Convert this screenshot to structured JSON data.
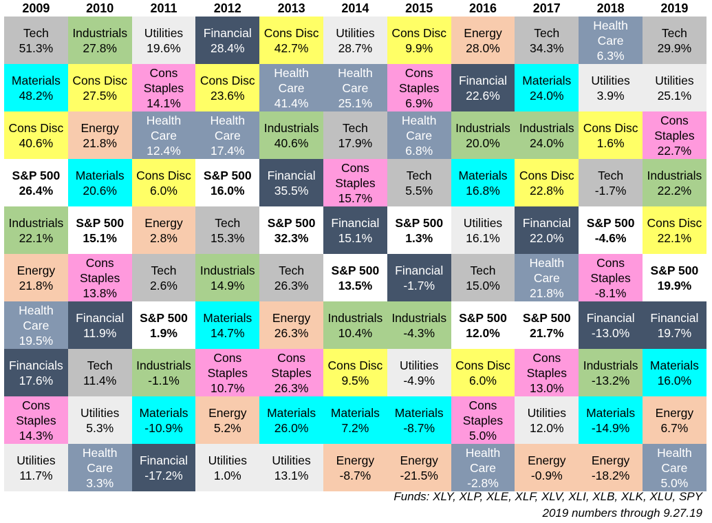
{
  "chart_data": {
    "type": "table",
    "years": [
      "2009",
      "2010",
      "2011",
      "2012",
      "2013",
      "2014",
      "2015",
      "2016",
      "2017",
      "2018",
      "2019"
    ],
    "columns": [
      [
        [
          "Tech",
          51.3
        ],
        [
          "Materials",
          48.2
        ],
        [
          "Cons Disc",
          40.6
        ],
        [
          "S&P 500",
          26.4
        ],
        [
          "Industrials",
          22.1
        ],
        [
          "Energy",
          21.8
        ],
        [
          "Health Care",
          19.5
        ],
        [
          "Financials",
          17.6
        ],
        [
          "Cons Staples",
          14.3
        ],
        [
          "Utilities",
          11.7
        ]
      ],
      [
        [
          "Industrials",
          27.8
        ],
        [
          "Cons Disc",
          27.5
        ],
        [
          "Energy",
          21.8
        ],
        [
          "Materials",
          20.6
        ],
        [
          "S&P 500",
          15.1
        ],
        [
          "Cons Staples",
          13.8
        ],
        [
          "Financial",
          11.9
        ],
        [
          "Tech",
          11.4
        ],
        [
          "Utilities",
          5.3
        ],
        [
          "Health Care",
          3.3
        ]
      ],
      [
        [
          "Utilities",
          19.6
        ],
        [
          "Cons Staples",
          14.1
        ],
        [
          "Health Care",
          12.4
        ],
        [
          "Cons Disc",
          6.0
        ],
        [
          "Energy",
          2.8
        ],
        [
          "Tech",
          2.6
        ],
        [
          "S&P 500",
          1.9
        ],
        [
          "Industrials",
          -1.1
        ],
        [
          "Materials",
          -10.9
        ],
        [
          "Financial",
          -17.2
        ]
      ],
      [
        [
          "Financial",
          28.4
        ],
        [
          "Cons Disc",
          23.6
        ],
        [
          "Health Care",
          17.4
        ],
        [
          "S&P 500",
          16.0
        ],
        [
          "Tech",
          15.3
        ],
        [
          "Industrials",
          14.9
        ],
        [
          "Materials",
          14.7
        ],
        [
          "Cons Staples",
          10.7
        ],
        [
          "Energy",
          5.2
        ],
        [
          "Utilities",
          1.0
        ]
      ],
      [
        [
          "Cons Disc",
          42.7
        ],
        [
          "Health Care",
          41.4
        ],
        [
          "Industrials",
          40.6
        ],
        [
          "Financial",
          35.5
        ],
        [
          "S&P 500",
          32.3
        ],
        [
          "Tech",
          26.3
        ],
        [
          "Energy",
          26.3
        ],
        [
          "Cons Staples",
          26.3
        ],
        [
          "Materials",
          26.0
        ],
        [
          "Utilities",
          13.1
        ]
      ],
      [
        [
          "Utilities",
          28.7
        ],
        [
          "Health Care",
          25.1
        ],
        [
          "Tech",
          17.9
        ],
        [
          "Cons Staples",
          15.7
        ],
        [
          "Financial",
          15.1
        ],
        [
          "S&P 500",
          13.5
        ],
        [
          "Industrials",
          10.4
        ],
        [
          "Cons Disc",
          9.5
        ],
        [
          "Materials",
          7.2
        ],
        [
          "Energy",
          -8.7
        ]
      ],
      [
        [
          "Cons Disc",
          9.9
        ],
        [
          "Cons Staples",
          6.9
        ],
        [
          "Health Care",
          6.8
        ],
        [
          "Tech",
          5.5
        ],
        [
          "S&P 500",
          1.3
        ],
        [
          "Financial",
          -1.7
        ],
        [
          "Industrials",
          -4.3
        ],
        [
          "Utilities",
          -4.9
        ],
        [
          "Materials",
          -8.7
        ],
        [
          "Energy",
          -21.5
        ]
      ],
      [
        [
          "Energy",
          28.0
        ],
        [
          "Financial",
          22.6
        ],
        [
          "Industrials",
          20.0
        ],
        [
          "Materials",
          16.8
        ],
        [
          "Utilities",
          16.1
        ],
        [
          "Tech",
          15.0
        ],
        [
          "S&P 500",
          12.0
        ],
        [
          "Cons Disc",
          6.0
        ],
        [
          "Cons Staples",
          5.0
        ],
        [
          "Health Care",
          -2.8
        ]
      ],
      [
        [
          "Tech",
          34.3
        ],
        [
          "Materials",
          24.0
        ],
        [
          "Industrials",
          24.0
        ],
        [
          "Cons Disc",
          22.8
        ],
        [
          "Financial",
          22.0
        ],
        [
          "Health Care",
          21.8
        ],
        [
          "S&P 500",
          21.7
        ],
        [
          "Cons Staples",
          13.0
        ],
        [
          "Utilities",
          12.0
        ],
        [
          "Energy",
          -0.9
        ]
      ],
      [
        [
          "Health Care",
          6.3
        ],
        [
          "Utilities",
          3.9
        ],
        [
          "Cons Disc",
          1.6
        ],
        [
          "Tech",
          -1.7
        ],
        [
          "S&P 500",
          -4.6
        ],
        [
          "Cons Staples",
          -8.1
        ],
        [
          "Financial",
          -13.0
        ],
        [
          "Industrials",
          -13.2
        ],
        [
          "Materials",
          -14.9
        ],
        [
          "Energy",
          -18.2
        ]
      ],
      [
        [
          "Tech",
          29.9
        ],
        [
          "Utilities",
          25.1
        ],
        [
          "Cons Staples",
          22.7
        ],
        [
          "Industrials",
          22.2
        ],
        [
          "Cons Disc",
          22.1
        ],
        [
          "S&P 500",
          19.9
        ],
        [
          "Financial",
          19.7
        ],
        [
          "Materials",
          16.0
        ],
        [
          "Energy",
          6.7
        ],
        [
          "Health Care",
          5.0
        ]
      ]
    ],
    "sector_colors": {
      "Tech": "#c0c0c0",
      "Materials": "#00ffff",
      "Cons Disc": "#ffff66",
      "S&P 500": "#ffffff",
      "Industrials": "#a9d08e",
      "Energy": "#f8cbad",
      "Health Care": "#8497b0",
      "Financials": "#44546a",
      "Financial": "#44546a",
      "Cons Staples": "#ff99dd",
      "Utilities": "#ededed"
    },
    "dark_text_sectors": [
      "Health Care",
      "Financial",
      "Financials"
    ],
    "bold_sectors": [
      "S&P 500"
    ]
  },
  "footnotes": {
    "funds": "Funds:  XLY, XLP, XLE, XLF, XLV, XLI, XLB, XLK, XLU, SPY",
    "through": "2019 numbers through 9.27.19"
  }
}
